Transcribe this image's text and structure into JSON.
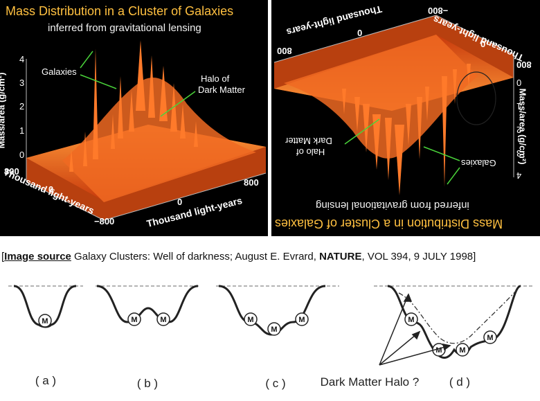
{
  "left_panel": {
    "title": "Mass Distribution in a Cluster of Galaxies",
    "subtitle": "inferred from gravitational lensing",
    "y_axis_label": "Mass/area (g/cm²)",
    "y_ticks": [
      "0",
      "1",
      "2",
      "3",
      "4"
    ],
    "annotation_galaxies": "Galaxies",
    "annotation_halo_line1": "Halo of",
    "annotation_halo_line2": "Dark Matter",
    "x_axis_label": "Thousand light-years",
    "depth_axis_label": "Thousand light-years",
    "tick_800_right": "800",
    "tick_0_front": "0",
    "tick_minus800": "−800",
    "tick_800_left": "800",
    "tick_0_left": "0"
  },
  "right_panel": {
    "title": "Mass Distribution in a Cluster of Galaxies",
    "subtitle": "inferred from gravitational lensing",
    "y_axis_label": "Mass/area (g/cm²)",
    "y_ticks": [
      "0",
      "1",
      "2",
      "3",
      "4"
    ],
    "annotation_galaxies": "Galaxies",
    "annotation_halo_line1": "Halo of",
    "annotation_halo_line2": "Dark Matter",
    "axis_label_top": "Thousand light-years",
    "axis_label_right": "Thousand light-years",
    "tick_800_a": "800",
    "tick_0_a": "0",
    "tick_minus800": "−800",
    "tick_0_b": "0",
    "tick_800_b": "800"
  },
  "source": {
    "open_bracket": "[",
    "label": "Image source",
    "text_a": " Galaxy Clusters: Well of darkness; August E. Evrard, ",
    "journal": "NATURE",
    "text_b": ", VOL 394, 9 JULY 1998]"
  },
  "wells": {
    "mass_symbol": "M",
    "labels": [
      "( a )",
      "( b )",
      "( c )",
      "( d )"
    ],
    "dark_matter_label": "Dark Matter Halo ?"
  },
  "colors": {
    "title": "#ffc040",
    "surface": "#e8581a",
    "arrow": "#4ad33a",
    "background": "#000000"
  }
}
